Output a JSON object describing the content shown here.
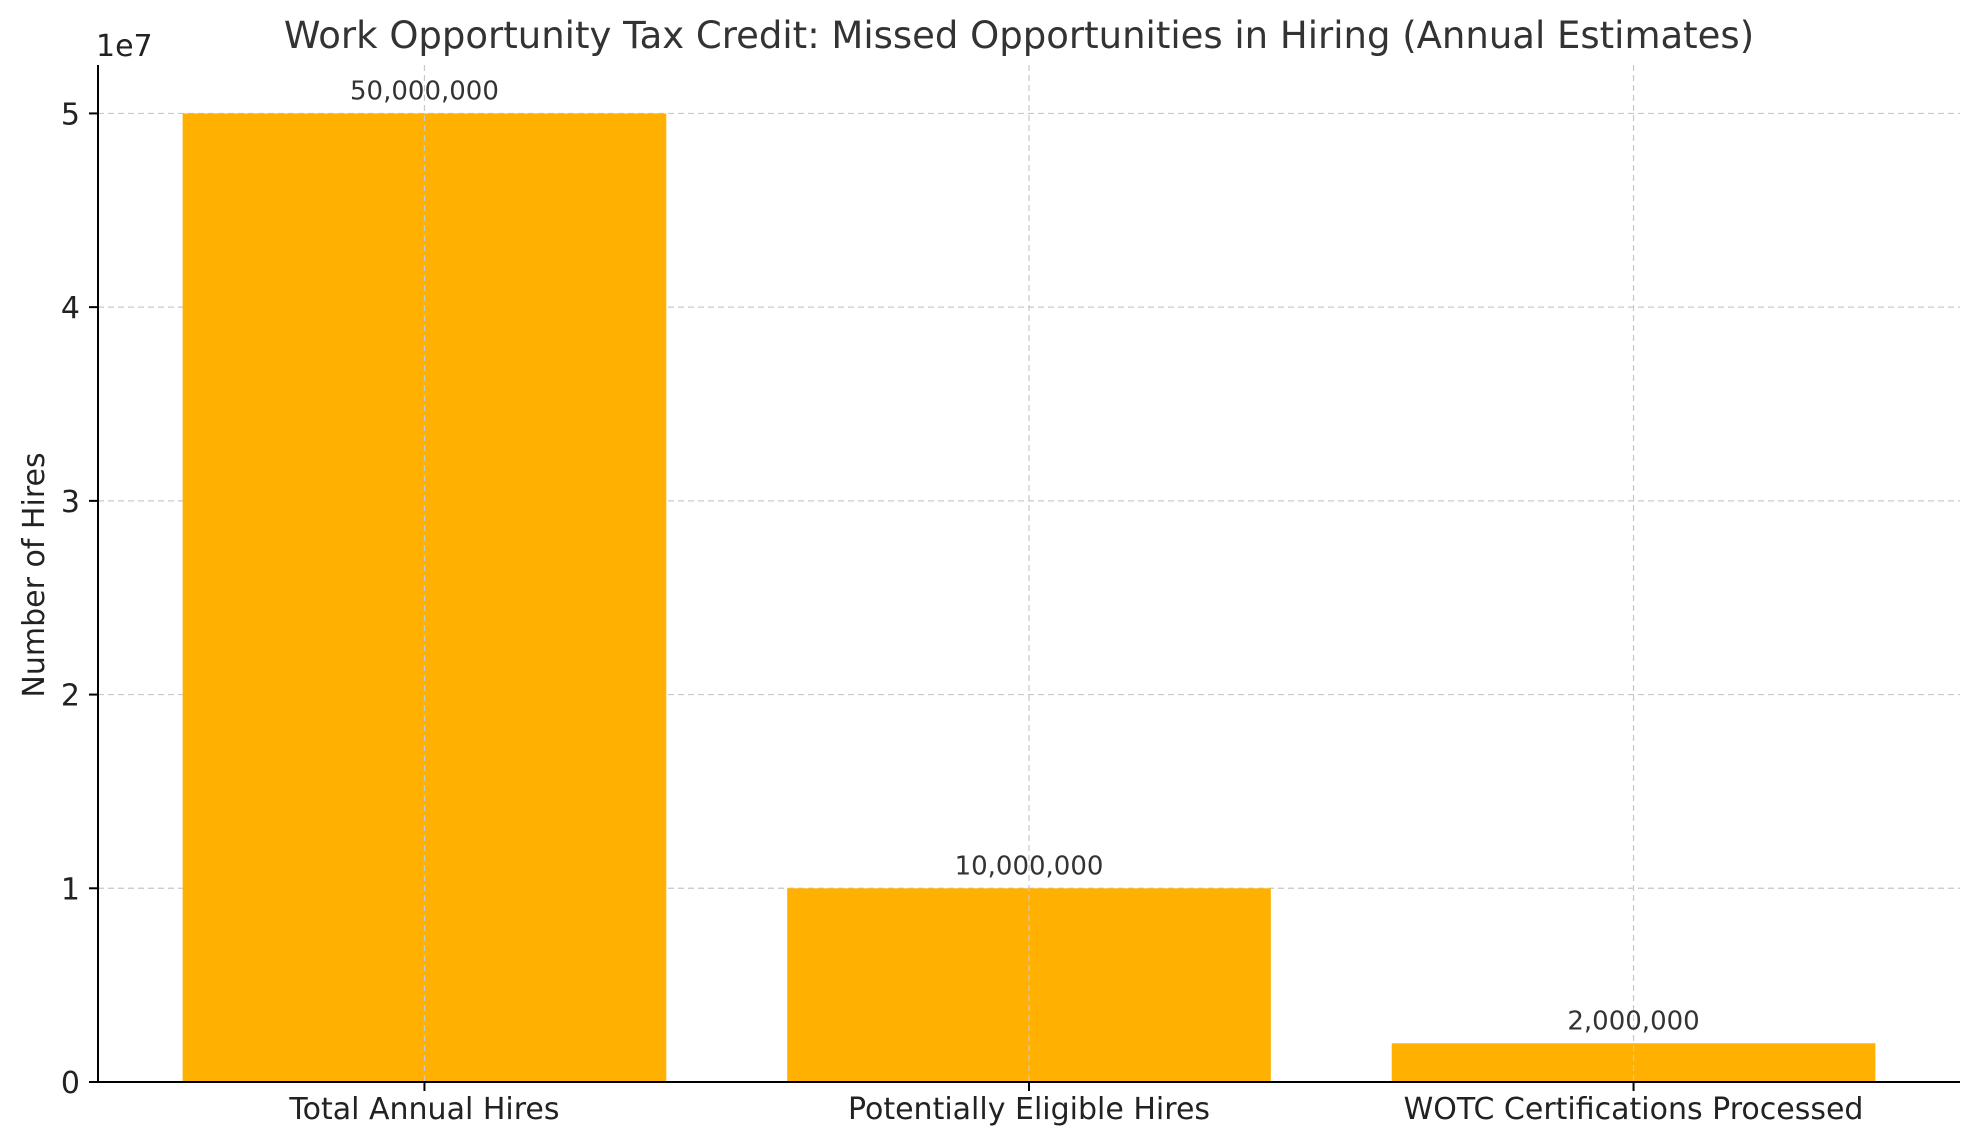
{
  "chart_data": {
    "type": "bar",
    "title": "Work Opportunity Tax Credit: Missed Opportunities in Hiring (Annual Estimates)",
    "xlabel": "",
    "ylabel": "Number of Hires",
    "y_offset_label": "1e7",
    "categories": [
      "Total Annual Hires",
      "Potentially Eligible Hires",
      "WOTC Certifications Processed"
    ],
    "values": [
      50000000,
      10000000,
      2000000
    ],
    "value_labels": [
      "50,000,000",
      "10,000,000",
      "2,000,000"
    ],
    "ylim": [
      0,
      52500000
    ],
    "yticks": [
      0,
      10000000,
      20000000,
      30000000,
      40000000,
      50000000
    ],
    "ytick_labels": [
      "0",
      "1",
      "2",
      "3",
      "4",
      "5"
    ],
    "grid": true,
    "bar_color": "#FFB000"
  }
}
